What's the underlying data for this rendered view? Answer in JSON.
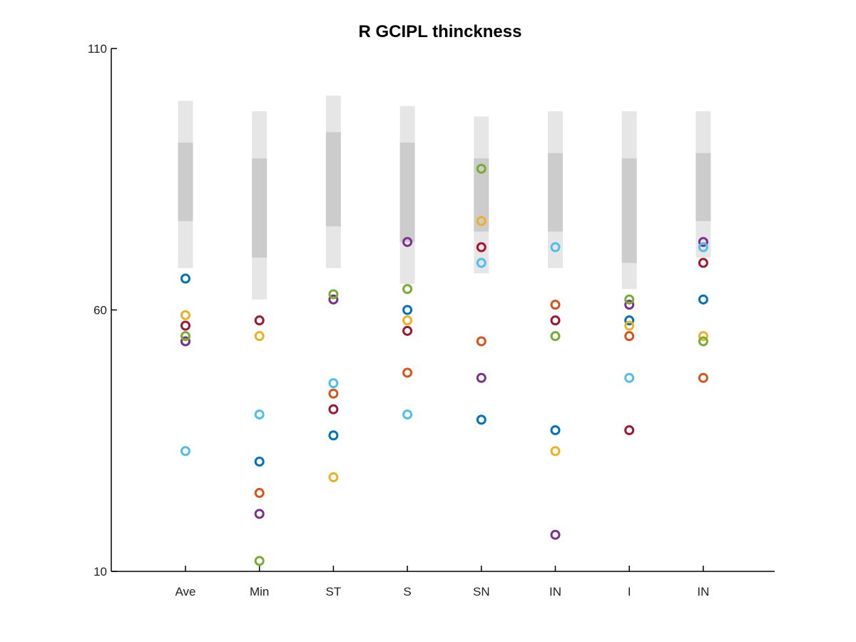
{
  "chart_data": {
    "type": "scatter",
    "title": "R GCIPL thinckness",
    "xlabel": "",
    "ylabel": "",
    "categories": [
      "Ave",
      "Min",
      "ST",
      "S",
      "SN",
      "IN",
      "I",
      "IN"
    ],
    "ylim": [
      10,
      110
    ],
    "yticks": [
      10,
      60,
      110
    ],
    "grid": false,
    "legend": "none",
    "bands_outer_color": "#e6e6e6",
    "bands_inner_color": "#cccccc",
    "bands": [
      {
        "outer": [
          68,
          100
        ],
        "inner": [
          77,
          92
        ]
      },
      {
        "outer": [
          62,
          98
        ],
        "inner": [
          70,
          89
        ]
      },
      {
        "outer": [
          68,
          101
        ],
        "inner": [
          76,
          94
        ]
      },
      {
        "outer": [
          65,
          99
        ],
        "inner": [
          73,
          92
        ]
      },
      {
        "outer": [
          67,
          97
        ],
        "inner": [
          75,
          89
        ]
      },
      {
        "outer": [
          68,
          98
        ],
        "inner": [
          75,
          90
        ]
      },
      {
        "outer": [
          64,
          98
        ],
        "inner": [
          69,
          89
        ]
      },
      {
        "outer": [
          70,
          98
        ],
        "inner": [
          77,
          90
        ]
      }
    ],
    "series": [
      {
        "color": "#0072BD",
        "values": [
          66,
          31,
          36,
          60,
          39,
          37,
          58,
          62
        ]
      },
      {
        "color": "#D95319",
        "values": [
          54,
          25,
          44,
          48,
          54,
          61,
          55,
          47
        ]
      },
      {
        "color": "#EDB120",
        "values": [
          59,
          55,
          28,
          58,
          77,
          33,
          57,
          55
        ]
      },
      {
        "color": "#7E2F8E",
        "values": [
          54,
          21,
          62,
          73,
          47,
          17,
          61,
          73
        ]
      },
      {
        "color": "#77AC30",
        "values": [
          55,
          12,
          63,
          64,
          87,
          55,
          62,
          54
        ]
      },
      {
        "color": "#4DBEEE",
        "values": [
          33,
          40,
          46,
          40,
          69,
          72,
          47,
          72
        ]
      },
      {
        "color": "#A2142F",
        "values": [
          57,
          58,
          41,
          56,
          72,
          58,
          37,
          69
        ]
      }
    ]
  }
}
